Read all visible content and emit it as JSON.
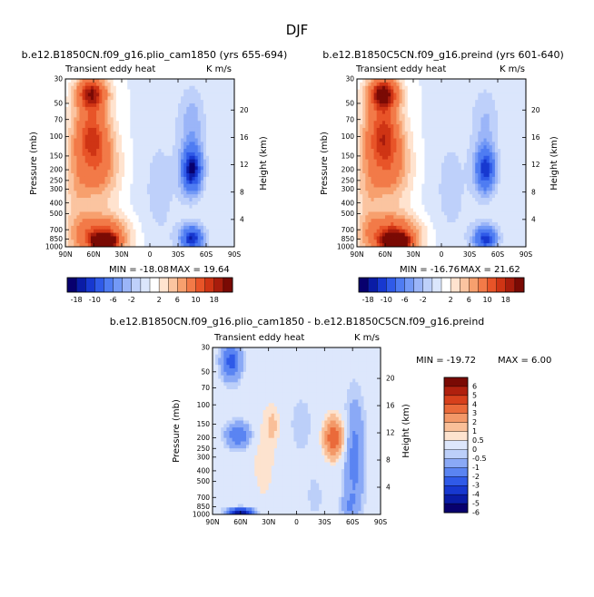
{
  "figure_title": "DJF",
  "palette_main": [
    "#08006e",
    "#0a1ca6",
    "#1738d0",
    "#2f5ae8",
    "#4f7cf2",
    "#7399f6",
    "#9bb5f8",
    "#bed0fa",
    "#dbe6fc",
    "#ffffff",
    "#ffe3cf",
    "#fbc4a0",
    "#f7a06e",
    "#f27a48",
    "#e85428",
    "#cf3414",
    "#a81c0c",
    "#7a0a04"
  ],
  "palette_diff": [
    "#08006e",
    "#0a1ca6",
    "#1738d0",
    "#2f5ae8",
    "#5a84f2",
    "#8aa9f6",
    "#bccff9",
    "#dde7fc",
    "#fde3cf",
    "#f9bf98",
    "#f39868",
    "#ea6a3a",
    "#d7401c",
    "#b0200e",
    "#7a0a04"
  ],
  "chart_data": [
    {
      "type": "heatmap",
      "id": "left",
      "title": "b.e12.B1850CN.f09_g16.plio_cam1850 (yrs 655-694)",
      "subtitle": "Transient eddy heat",
      "units": "K m/s",
      "ylabel": "Pressure (mb)",
      "ylabel_right": "Height (km)",
      "x_ticks": [
        "90N",
        "60N",
        "30N",
        "0",
        "30S",
        "60S",
        "90S"
      ],
      "x_values": [
        90,
        60,
        30,
        0,
        -30,
        -60,
        -90
      ],
      "y_ticks": [
        "30",
        "50",
        "70",
        "100",
        "150",
        "200",
        "250",
        "300",
        "400",
        "500",
        "700",
        "850",
        "1000"
      ],
      "y_values": [
        30,
        50,
        70,
        100,
        150,
        200,
        250,
        300,
        400,
        500,
        700,
        850,
        1000
      ],
      "height_ticks": [
        "20",
        "16",
        "12",
        "8",
        "4"
      ],
      "height_values": [
        20,
        16,
        12,
        8,
        4
      ],
      "min_label": "MIN = -18.08",
      "max_label": "MAX =  19.64",
      "min": -18.08,
      "max": 19.64,
      "colorbar_labels": [
        "-18",
        "-10",
        "-6",
        "-2",
        "2",
        "6",
        "10",
        "18"
      ],
      "levels": [
        -18,
        -16,
        -14,
        -12,
        -10,
        -8,
        -6,
        -4,
        -2,
        0,
        2,
        4,
        6,
        8,
        10,
        12,
        14,
        16,
        18
      ],
      "features": [
        {
          "lat": 62,
          "p": 40,
          "amp": 16,
          "wlat": 12,
          "wz": 0.25
        },
        {
          "lat": 62,
          "p": 90,
          "amp": 12,
          "wlat": 14,
          "wz": 0.45
        },
        {
          "lat": 55,
          "p": 200,
          "amp": 9,
          "wlat": 16,
          "wz": 0.5
        },
        {
          "lat": 52,
          "p": 800,
          "amp": 15,
          "wlat": 20,
          "wz": 0.3
        },
        {
          "lat": 48,
          "p": 900,
          "amp": 19.6,
          "wlat": 9,
          "wz": 0.1
        },
        {
          "lat": 78,
          "p": 300,
          "amp": 4,
          "wlat": 10,
          "wz": 0.8
        },
        {
          "lat": -45,
          "p": 200,
          "amp": -18,
          "wlat": 8,
          "wz": 0.35
        },
        {
          "lat": -45,
          "p": 850,
          "amp": -16,
          "wlat": 9,
          "wz": 0.2
        },
        {
          "lat": -45,
          "p": 70,
          "amp": -5,
          "wlat": 10,
          "wz": 0.5
        },
        {
          "lat": -10,
          "p": 300,
          "amp": -2.5,
          "wlat": 18,
          "wz": 1.2
        }
      ]
    },
    {
      "type": "heatmap",
      "id": "right",
      "title": "b.e12.B1850C5CN.f09_g16.preind (yrs 601-640)",
      "subtitle": "Transient eddy heat",
      "units": "K m/s",
      "ylabel": "Pressure (mb)",
      "ylabel_right": "Height (km)",
      "x_ticks": [
        "90N",
        "60N",
        "30N",
        "0",
        "30S",
        "60S",
        "90S"
      ],
      "x_values": [
        90,
        60,
        30,
        0,
        -30,
        -60,
        -90
      ],
      "y_ticks": [
        "30",
        "50",
        "70",
        "100",
        "150",
        "200",
        "250",
        "300",
        "400",
        "500",
        "700",
        "850",
        "1000"
      ],
      "y_values": [
        30,
        50,
        70,
        100,
        150,
        200,
        250,
        300,
        400,
        500,
        700,
        850,
        1000
      ],
      "height_ticks": [
        "20",
        "16",
        "12",
        "8",
        "4"
      ],
      "height_values": [
        20,
        16,
        12,
        8,
        4
      ],
      "min_label": "MIN = -16.76",
      "max_label": "MAX =  21.62",
      "min": -16.76,
      "max": 21.62,
      "colorbar_labels": [
        "-18",
        "-10",
        "-6",
        "-2",
        "2",
        "6",
        "10",
        "18"
      ],
      "levels": [
        -18,
        -16,
        -14,
        -12,
        -10,
        -8,
        -6,
        -4,
        -2,
        0,
        2,
        4,
        6,
        8,
        10,
        12,
        14,
        16,
        18
      ],
      "features": [
        {
          "lat": 62,
          "p": 40,
          "amp": 18,
          "wlat": 12,
          "wz": 0.25
        },
        {
          "lat": 62,
          "p": 90,
          "amp": 13,
          "wlat": 14,
          "wz": 0.45
        },
        {
          "lat": 55,
          "p": 200,
          "amp": 9,
          "wlat": 16,
          "wz": 0.5
        },
        {
          "lat": 52,
          "p": 800,
          "amp": 16,
          "wlat": 20,
          "wz": 0.3
        },
        {
          "lat": 48,
          "p": 900,
          "amp": 21.6,
          "wlat": 9,
          "wz": 0.1
        },
        {
          "lat": 78,
          "p": 300,
          "amp": 4,
          "wlat": 10,
          "wz": 0.8
        },
        {
          "lat": -47,
          "p": 200,
          "amp": -15,
          "wlat": 8,
          "wz": 0.35
        },
        {
          "lat": -47,
          "p": 850,
          "amp": -15,
          "wlat": 9,
          "wz": 0.2
        },
        {
          "lat": -47,
          "p": 70,
          "amp": -4,
          "wlat": 10,
          "wz": 0.5
        },
        {
          "lat": -10,
          "p": 300,
          "amp": -2.5,
          "wlat": 18,
          "wz": 1.2
        }
      ]
    },
    {
      "type": "heatmap",
      "id": "diff",
      "title": "b.e12.B1850CN.f09_g16.plio_cam1850 - b.e12.B1850C5CN.f09_g16.preind",
      "subtitle": "Transient eddy heat",
      "units": "K m/s",
      "ylabel": "Pressure (mb)",
      "ylabel_right": "Height (km)",
      "x_ticks": [
        "90N",
        "60N",
        "30N",
        "0",
        "30S",
        "60S",
        "90S"
      ],
      "x_values": [
        90,
        60,
        30,
        0,
        -30,
        -60,
        -90
      ],
      "y_ticks": [
        "30",
        "50",
        "70",
        "100",
        "150",
        "200",
        "250",
        "300",
        "400",
        "500",
        "700",
        "850",
        "1000"
      ],
      "y_values": [
        30,
        50,
        70,
        100,
        150,
        200,
        250,
        300,
        400,
        500,
        700,
        850,
        1000
      ],
      "height_ticks": [
        "20",
        "16",
        "12",
        "8",
        "4"
      ],
      "height_values": [
        20,
        16,
        12,
        8,
        4
      ],
      "min_label": "MIN = -19.72",
      "max_label": "MAX =   6.00",
      "min": -19.72,
      "max": 6.0,
      "colorbar_labels": [
        "6",
        "5",
        "4",
        "3",
        "2",
        "1",
        "0.5",
        "0",
        "-0.5",
        "-1",
        "-2",
        "-3",
        "-4",
        "-5",
        "-6"
      ],
      "levels": [
        -6,
        -5,
        -4,
        -3,
        -2,
        -1,
        -0.5,
        0,
        0.5,
        1,
        2,
        3,
        4,
        5,
        6
      ],
      "features": [
        {
          "lat": 70,
          "p": 40,
          "amp": -3.5,
          "wlat": 8,
          "wz": 0.3
        },
        {
          "lat": 62,
          "p": 190,
          "amp": -3,
          "wlat": 10,
          "wz": 0.2
        },
        {
          "lat": 60,
          "p": 950,
          "amp": -6,
          "wlat": 10,
          "wz": 0.06
        },
        {
          "lat": -40,
          "p": 200,
          "amp": 4,
          "wlat": 8,
          "wz": 0.3
        },
        {
          "lat": -62,
          "p": 300,
          "amp": -2.5,
          "wlat": 8,
          "wz": 0.9
        },
        {
          "lat": -55,
          "p": 850,
          "amp": -1.2,
          "wlat": 6,
          "wz": 0.2
        },
        {
          "lat": 35,
          "p": 300,
          "amp": 0.8,
          "wlat": 10,
          "wz": 0.8
        },
        {
          "lat": 25,
          "p": 150,
          "amp": 1,
          "wlat": 5,
          "wz": 0.3
        },
        {
          "lat": -5,
          "p": 150,
          "amp": -0.7,
          "wlat": 12,
          "wz": 0.6
        },
        {
          "lat": -20,
          "p": 700,
          "amp": -0.6,
          "wlat": 10,
          "wz": 0.5
        }
      ]
    }
  ]
}
